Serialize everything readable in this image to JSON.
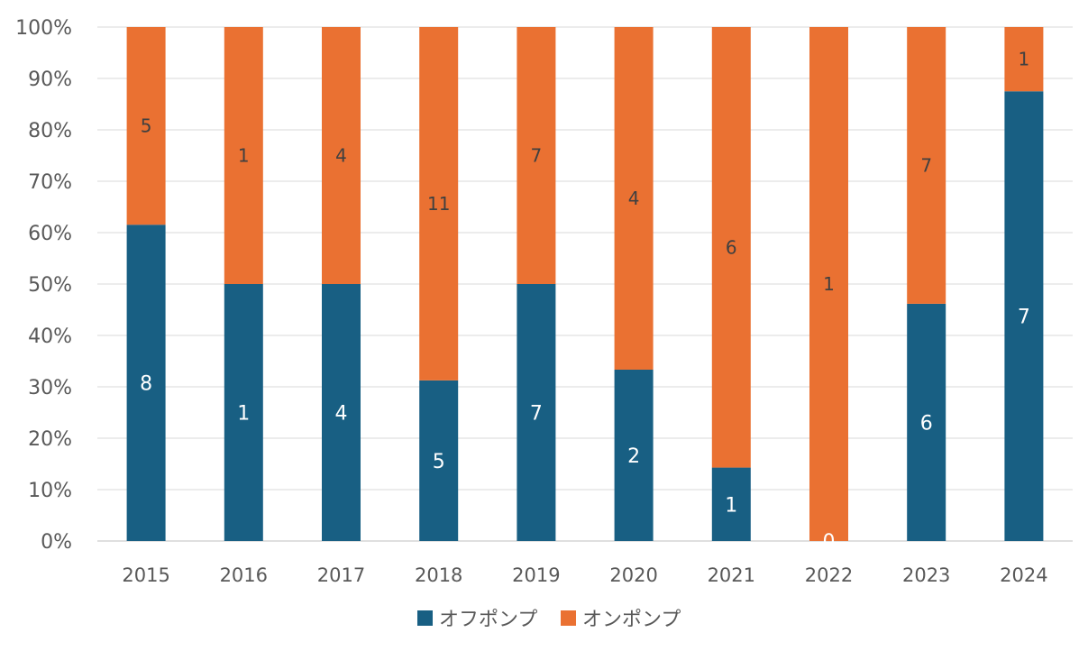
{
  "chart_data": {
    "type": "bar",
    "stacked": "percent",
    "title": "",
    "xlabel": "",
    "ylabel": "",
    "ylim": [
      0,
      100
    ],
    "y_tick_labels": [
      "0%",
      "10%",
      "20%",
      "30%",
      "40%",
      "50%",
      "60%",
      "70%",
      "80%",
      "90%",
      "100%"
    ],
    "categories": [
      "2015",
      "2016",
      "2017",
      "2018",
      "2019",
      "2020",
      "2021",
      "2022",
      "2023",
      "2024"
    ],
    "series": [
      {
        "name": "オフポンプ",
        "color": "#185f83",
        "values": [
          8,
          1,
          4,
          5,
          7,
          2,
          1,
          0,
          6,
          7
        ]
      },
      {
        "name": "オンポンプ",
        "color": "#ea7132",
        "values": [
          5,
          1,
          4,
          11,
          7,
          4,
          6,
          1,
          7,
          1
        ]
      }
    ],
    "grid": true,
    "legend": "bottom"
  }
}
